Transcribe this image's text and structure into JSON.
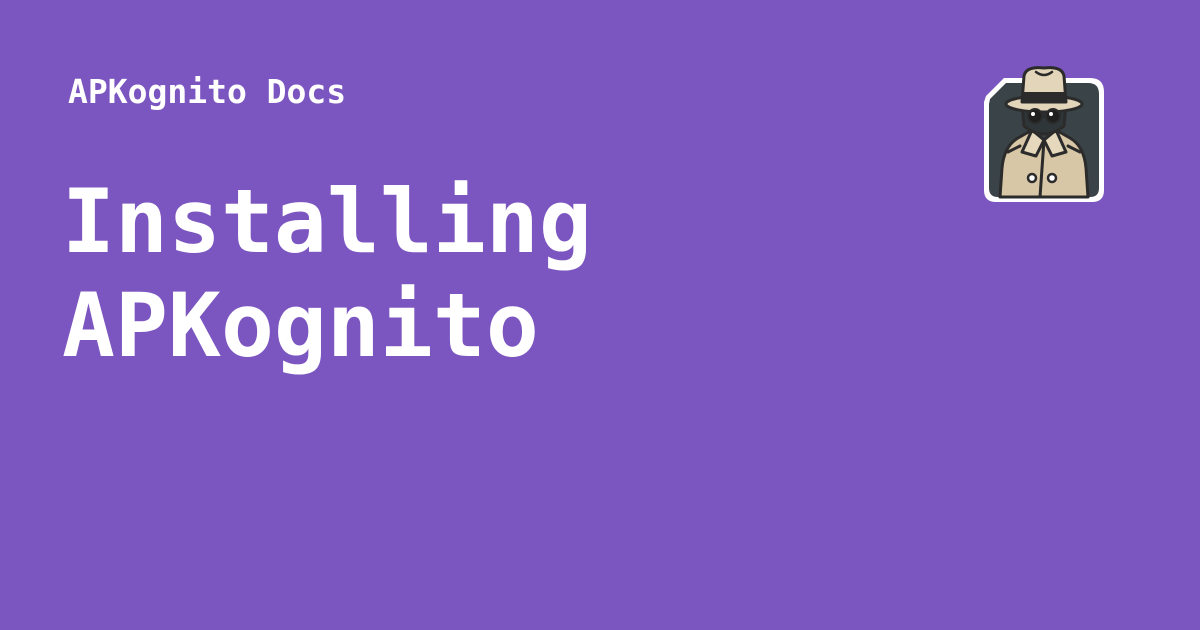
{
  "site": {
    "name": "APKognito Docs"
  },
  "page": {
    "title_line1": "Installing",
    "title_line2": "APKognito"
  },
  "logo": {
    "icon": "spy-detective-icon"
  },
  "colors": {
    "background": "#7b55c0",
    "text": "#ffffff",
    "logo_panel": "#3a4347",
    "coat": "#d8c7a6",
    "hat": "#e3d5ba",
    "outline": "#2b2b2b"
  }
}
